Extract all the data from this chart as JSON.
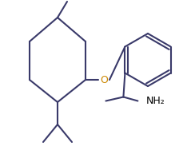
{
  "background_color": "#ffffff",
  "line_color": "#3a3a6a",
  "o_color": "#cc8800",
  "nh2_color": "#000000",
  "line_width": 1.5,
  "figsize": [
    2.34,
    1.93
  ],
  "dpi": 100
}
